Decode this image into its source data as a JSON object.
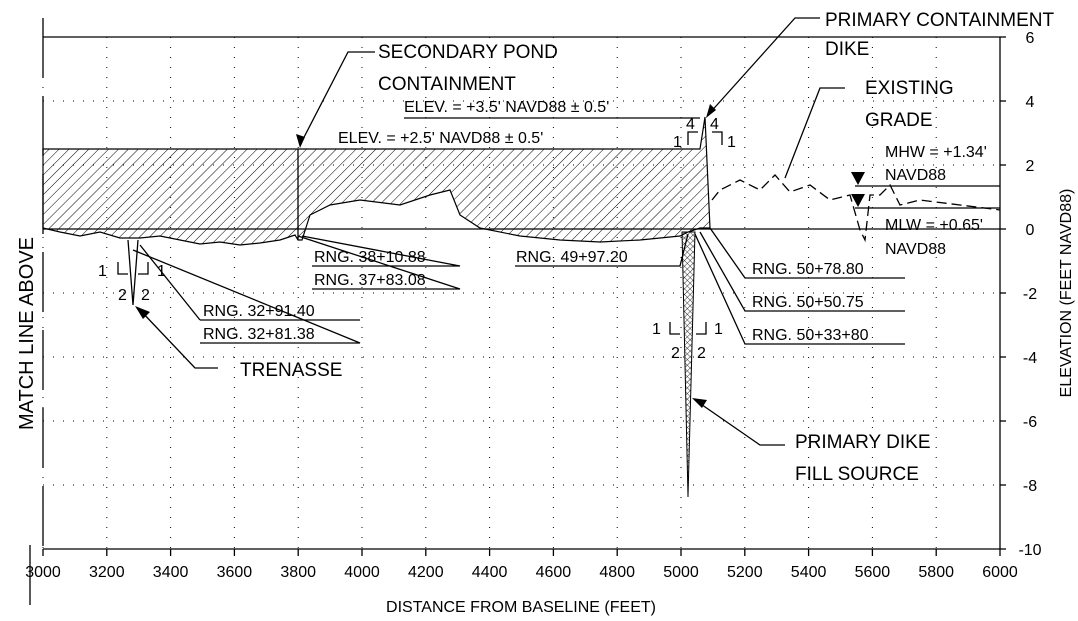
{
  "labels": {
    "primary_containment": "PRIMARY CONTAINMENT",
    "primary_dike": "DIKE",
    "secondary_1": "SECONDARY POND",
    "secondary_2": "CONTAINMENT",
    "elev_primary": "ELEV. = +3.5' NAVD88 ± 0.5'",
    "elev_secondary": "ELEV. = +2.5' NAVD88 ± 0.5'",
    "existing": "EXISTING",
    "grade": "GRADE",
    "mhw": "MHW = +1.34'",
    "mhw_datum": "NAVD88",
    "mlw": "MLW = +0.65'",
    "mlw_datum": "NAVD88",
    "rng_3810": "RNG. 38+10.88",
    "rng_3783": "RNG. 37+83.08",
    "rng_4997": "RNG. 49+97.20",
    "rng_5078": "RNG. 50+78.80",
    "rng_5050": "RNG. 50+50.75",
    "rng_5033": "RNG. 50+33+80",
    "rng_3291": "RNG. 32+91.40",
    "rng_3281": "RNG. 32+81.38",
    "trenasse": "TRENASSE",
    "fill_1": "PRIMARY DIKE",
    "fill_2": "FILL SOURCE",
    "match_line": "MATCH LINE ABOVE"
  },
  "slopes": {
    "trenasse": [
      "1",
      "1",
      "2",
      "2"
    ],
    "dike": [
      "4",
      "4",
      "1",
      "1"
    ],
    "fill": [
      "1",
      "1",
      "2",
      "2"
    ]
  },
  "x_axis": {
    "label": "DISTANCE FROM BASELINE (FEET)",
    "ticks": [
      3000,
      3200,
      3400,
      3600,
      3800,
      4000,
      4200,
      4400,
      4600,
      4800,
      5000,
      5200,
      5400,
      5600,
      5800,
      6000
    ]
  },
  "y_axis": {
    "label": "ELEVATION (FEET NAVD88)",
    "ticks": [
      6,
      4,
      2,
      0,
      -2,
      -4,
      -6,
      -8,
      -10
    ]
  }
}
